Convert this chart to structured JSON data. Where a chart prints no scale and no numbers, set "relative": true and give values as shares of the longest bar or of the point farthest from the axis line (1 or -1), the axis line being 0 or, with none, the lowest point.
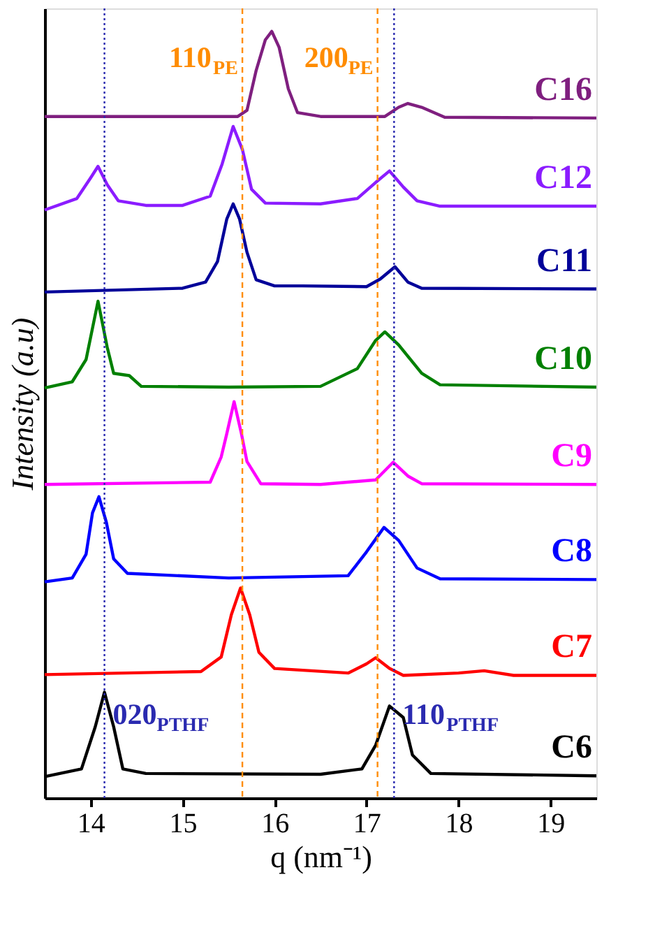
{
  "chart_data": {
    "type": "line",
    "relative": true,
    "xlabel": "q (nm⁻¹)",
    "ylabel": "Intensity (a.u)",
    "xlim": [
      13.5,
      19.5
    ],
    "xticks": [
      14,
      15,
      16,
      17,
      18,
      19
    ],
    "grid": false,
    "legend": false,
    "tick_labels": "x",
    "marker": "none",
    "line_style": "solid",
    "series": [
      {
        "name": "C6",
        "color": "#000000",
        "x": [
          13.5,
          13.9,
          14.05,
          14.15,
          14.25,
          14.35,
          14.6,
          16.5,
          16.95,
          17.1,
          17.25,
          17.4,
          17.5,
          17.7,
          19.5
        ],
        "values": [
          0.028,
          0.038,
          0.093,
          0.138,
          0.093,
          0.038,
          0.032,
          0.031,
          0.038,
          0.069,
          0.12,
          0.105,
          0.056,
          0.032,
          0.029
        ]
      },
      {
        "name": "C7",
        "color": "#ff0000",
        "x": [
          13.5,
          15.2,
          15.42,
          15.53,
          15.63,
          15.73,
          15.83,
          16.0,
          16.8,
          17.0,
          17.1,
          17.25,
          17.4,
          18.0,
          18.28,
          18.6,
          19.5
        ],
        "values": [
          0.161,
          0.165,
          0.184,
          0.239,
          0.274,
          0.239,
          0.19,
          0.169,
          0.163,
          0.175,
          0.183,
          0.169,
          0.16,
          0.163,
          0.166,
          0.16,
          0.16
        ]
      },
      {
        "name": "C8",
        "color": "#0000ff",
        "x": [
          13.5,
          13.8,
          13.95,
          14.02,
          14.09,
          14.17,
          14.25,
          14.4,
          15.5,
          16.8,
          17.0,
          17.19,
          17.35,
          17.55,
          17.8,
          19.5
        ],
        "values": [
          0.282,
          0.287,
          0.318,
          0.372,
          0.393,
          0.36,
          0.312,
          0.293,
          0.287,
          0.29,
          0.321,
          0.353,
          0.336,
          0.3,
          0.286,
          0.285
        ]
      },
      {
        "name": "C9",
        "color": "#ff00ff",
        "x": [
          13.5,
          15.3,
          15.42,
          15.48,
          15.56,
          15.64,
          15.7,
          15.85,
          16.5,
          17.1,
          17.29,
          17.45,
          17.6,
          19.5
        ],
        "values": [
          0.409,
          0.412,
          0.445,
          0.475,
          0.517,
          0.475,
          0.439,
          0.41,
          0.409,
          0.415,
          0.438,
          0.42,
          0.41,
          0.409
        ]
      },
      {
        "name": "C10",
        "color": "#008000",
        "x": [
          13.5,
          13.8,
          13.95,
          14.08,
          14.18,
          14.25,
          14.42,
          14.55,
          15.5,
          16.5,
          16.9,
          17.1,
          17.2,
          17.35,
          17.6,
          17.8,
          19.5
        ],
        "values": [
          0.535,
          0.543,
          0.572,
          0.648,
          0.588,
          0.554,
          0.551,
          0.537,
          0.536,
          0.537,
          0.56,
          0.597,
          0.608,
          0.591,
          0.554,
          0.539,
          0.536
        ]
      },
      {
        "name": "C11",
        "color": "#000099",
        "x": [
          13.5,
          15.0,
          15.25,
          15.38,
          15.48,
          15.55,
          15.62,
          15.7,
          15.8,
          16.0,
          16.3,
          17.0,
          17.15,
          17.31,
          17.45,
          17.6,
          19.5
        ],
        "values": [
          0.66,
          0.665,
          0.673,
          0.7,
          0.755,
          0.775,
          0.755,
          0.712,
          0.676,
          0.668,
          0.668,
          0.667,
          0.677,
          0.693,
          0.673,
          0.665,
          0.664
        ]
      },
      {
        "name": "C12",
        "color": "#8b1cff",
        "x": [
          13.5,
          13.85,
          14.0,
          14.08,
          14.18,
          14.3,
          14.6,
          15.0,
          15.3,
          15.43,
          15.55,
          15.65,
          15.75,
          15.9,
          16.5,
          16.9,
          17.1,
          17.25,
          17.4,
          17.55,
          17.8,
          19.5
        ],
        "values": [
          0.767,
          0.782,
          0.809,
          0.824,
          0.8,
          0.779,
          0.773,
          0.773,
          0.785,
          0.827,
          0.876,
          0.846,
          0.794,
          0.776,
          0.775,
          0.782,
          0.803,
          0.818,
          0.797,
          0.779,
          0.772,
          0.772
        ]
      },
      {
        "name": "C16",
        "color": "#7f1f7f",
        "x": [
          13.5,
          15.6,
          15.7,
          15.8,
          15.9,
          15.97,
          16.05,
          16.15,
          16.25,
          16.5,
          17.2,
          17.35,
          17.45,
          17.6,
          17.85,
          19.5
        ],
        "values": [
          0.889,
          0.889,
          0.897,
          0.949,
          0.989,
          1.0,
          0.979,
          0.925,
          0.894,
          0.889,
          0.889,
          0.901,
          0.906,
          0.901,
          0.888,
          0.887
        ]
      }
    ],
    "ref_lines": [
      {
        "axis": "x",
        "value": 14.15,
        "color": "#2a2ab0",
        "line_style": "dotted",
        "label": "020$_{PTHF}$"
      },
      {
        "axis": "x",
        "value": 15.65,
        "color": "#ff8c00",
        "line_style": "dashed",
        "label": "110$_{PE}$"
      },
      {
        "axis": "x",
        "value": 17.12,
        "color": "#ff8c00",
        "line_style": "dashed",
        "label": "200$_{PE}$"
      },
      {
        "axis": "x",
        "value": 17.3,
        "color": "#2a2ab0",
        "line_style": "dotted",
        "label": "110$_{PTHF}$"
      }
    ]
  }
}
